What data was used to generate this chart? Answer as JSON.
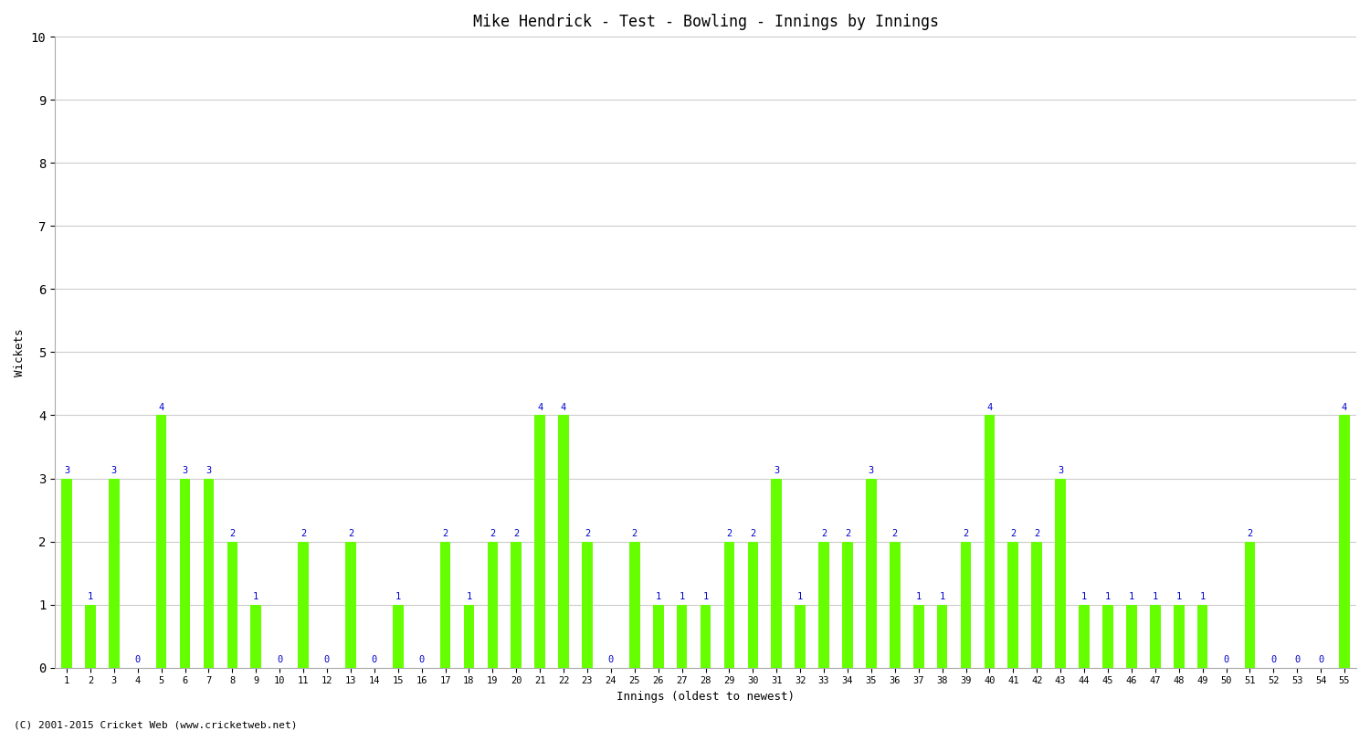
{
  "title": "Mike Hendrick - Test - Bowling - Innings by Innings",
  "xlabel": "Innings (oldest to newest)",
  "ylabel": "Wickets",
  "ylim": [
    0,
    10
  ],
  "yticks": [
    0,
    1,
    2,
    3,
    4,
    5,
    6,
    7,
    8,
    9,
    10
  ],
  "bar_color": "#66FF00",
  "label_color": "#0000CC",
  "background_color": "#FFFFFF",
  "grid_color": "#CCCCCC",
  "footer": "(C) 2001-2015 Cricket Web (www.cricketweb.net)",
  "innings_labels": [
    "1",
    "2",
    "3",
    "4",
    "5",
    "6",
    "7",
    "8",
    "9",
    "10",
    "11",
    "12",
    "13",
    "14",
    "15",
    "16",
    "17",
    "18",
    "19",
    "20",
    "21",
    "22",
    "23",
    "24",
    "25",
    "26",
    "27",
    "28",
    "29",
    "30",
    "31",
    "32",
    "33",
    "34",
    "35",
    "36",
    "37",
    "38",
    "39",
    "40",
    "41",
    "42",
    "43",
    "44",
    "45",
    "46",
    "47",
    "48",
    "49",
    "50",
    "51",
    "52",
    "53",
    "54",
    "55"
  ],
  "wickets": [
    3,
    1,
    3,
    0,
    4,
    3,
    3,
    2,
    1,
    0,
    2,
    0,
    2,
    0,
    1,
    0,
    2,
    1,
    2,
    2,
    4,
    4,
    2,
    0,
    2,
    1,
    1,
    1,
    2,
    2,
    3,
    1,
    2,
    2,
    3,
    2,
    1,
    1,
    2,
    4,
    2,
    2,
    3,
    1,
    1,
    1,
    1,
    1,
    1,
    0,
    2,
    0,
    0,
    0,
    4
  ]
}
